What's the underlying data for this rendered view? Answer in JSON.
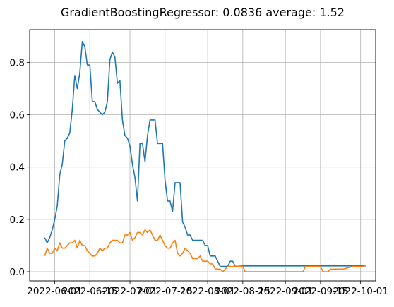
{
  "chart_data": {
    "type": "line",
    "title": "GradientBoostingRegressor: 0.0836 average: 1.52",
    "xlabel": "",
    "ylabel": "",
    "grid": true,
    "ylim": [
      -0.035,
      0.925
    ],
    "xlim": [
      "2022-05-22",
      "2022-10-07"
    ],
    "x_tick_labels": [
      "2022-06-01",
      "2022-06-15",
      "2022-07-01",
      "2022-07-15",
      "2022-08-01",
      "2022-08-15",
      "2022-09-01",
      "2022-09-15",
      "2022-10-01"
    ],
    "y_tick_labels": [
      "0.0",
      "0.2",
      "0.4",
      "0.6",
      "0.8"
    ],
    "y_ticks": [
      0.0,
      0.2,
      0.4,
      0.6,
      0.8
    ],
    "series": [
      {
        "color": "#1f77b4",
        "points": [
          [
            "2022-05-28",
            0.13
          ],
          [
            "2022-05-29",
            0.11
          ],
          [
            "2022-05-30",
            0.13
          ],
          [
            "2022-05-31",
            0.16
          ],
          [
            "2022-06-01",
            0.2
          ],
          [
            "2022-06-02",
            0.25
          ],
          [
            "2022-06-03",
            0.37
          ],
          [
            "2022-06-04",
            0.41
          ],
          [
            "2022-06-05",
            0.5
          ],
          [
            "2022-06-06",
            0.51
          ],
          [
            "2022-06-07",
            0.53
          ],
          [
            "2022-06-08",
            0.62
          ],
          [
            "2022-06-09",
            0.75
          ],
          [
            "2022-06-10",
            0.7
          ],
          [
            "2022-06-11",
            0.76
          ],
          [
            "2022-06-12",
            0.88
          ],
          [
            "2022-06-13",
            0.86
          ],
          [
            "2022-06-14",
            0.79
          ],
          [
            "2022-06-15",
            0.79
          ],
          [
            "2022-06-16",
            0.65
          ],
          [
            "2022-06-17",
            0.65
          ],
          [
            "2022-06-18",
            0.62
          ],
          [
            "2022-06-19",
            0.61
          ],
          [
            "2022-06-20",
            0.6
          ],
          [
            "2022-06-21",
            0.61
          ],
          [
            "2022-06-22",
            0.65
          ],
          [
            "2022-06-23",
            0.81
          ],
          [
            "2022-06-24",
            0.84
          ],
          [
            "2022-06-25",
            0.82
          ],
          [
            "2022-06-26",
            0.72
          ],
          [
            "2022-06-27",
            0.73
          ],
          [
            "2022-06-28",
            0.58
          ],
          [
            "2022-06-29",
            0.52
          ],
          [
            "2022-06-30",
            0.51
          ],
          [
            "2022-07-01",
            0.48
          ],
          [
            "2022-07-02",
            0.41
          ],
          [
            "2022-07-03",
            0.36
          ],
          [
            "2022-07-04",
            0.27
          ],
          [
            "2022-07-05",
            0.49
          ],
          [
            "2022-07-06",
            0.49
          ],
          [
            "2022-07-07",
            0.42
          ],
          [
            "2022-07-08",
            0.52
          ],
          [
            "2022-07-09",
            0.58
          ],
          [
            "2022-07-10",
            0.58
          ],
          [
            "2022-07-11",
            0.58
          ],
          [
            "2022-07-12",
            0.49
          ],
          [
            "2022-07-13",
            0.49
          ],
          [
            "2022-07-14",
            0.49
          ],
          [
            "2022-07-15",
            0.35
          ],
          [
            "2022-07-16",
            0.27
          ],
          [
            "2022-07-17",
            0.27
          ],
          [
            "2022-07-18",
            0.23
          ],
          [
            "2022-07-19",
            0.34
          ],
          [
            "2022-07-20",
            0.34
          ],
          [
            "2022-07-21",
            0.34
          ],
          [
            "2022-07-22",
            0.19
          ],
          [
            "2022-07-23",
            0.17
          ],
          [
            "2022-07-24",
            0.14
          ],
          [
            "2022-07-25",
            0.14
          ],
          [
            "2022-07-26",
            0.12
          ],
          [
            "2022-07-27",
            0.12
          ],
          [
            "2022-07-28",
            0.12
          ],
          [
            "2022-07-29",
            0.12
          ],
          [
            "2022-07-30",
            0.12
          ],
          [
            "2022-07-31",
            0.1
          ],
          [
            "2022-08-01",
            0.1
          ],
          [
            "2022-08-02",
            0.06
          ],
          [
            "2022-08-03",
            0.06
          ],
          [
            "2022-08-04",
            0.06
          ],
          [
            "2022-08-05",
            0.04
          ],
          [
            "2022-08-06",
            0.02
          ],
          [
            "2022-08-07",
            0.02
          ],
          [
            "2022-08-08",
            0.02
          ],
          [
            "2022-08-09",
            0.02
          ],
          [
            "2022-08-10",
            0.04
          ],
          [
            "2022-08-11",
            0.04
          ],
          [
            "2022-08-12",
            0.02
          ],
          [
            "2022-08-15",
            0.022
          ],
          [
            "2022-09-01",
            0.022
          ],
          [
            "2022-09-15",
            0.022
          ],
          [
            "2022-10-01",
            0.022
          ],
          [
            "2022-10-03",
            0.022
          ]
        ]
      },
      {
        "color": "#ff7f0e",
        "points": [
          [
            "2022-05-28",
            0.06
          ],
          [
            "2022-05-29",
            0.09
          ],
          [
            "2022-05-30",
            0.07
          ],
          [
            "2022-05-31",
            0.07
          ],
          [
            "2022-06-01",
            0.09
          ],
          [
            "2022-06-02",
            0.08
          ],
          [
            "2022-06-03",
            0.11
          ],
          [
            "2022-06-04",
            0.09
          ],
          [
            "2022-06-05",
            0.09
          ],
          [
            "2022-06-06",
            0.1
          ],
          [
            "2022-06-07",
            0.11
          ],
          [
            "2022-06-08",
            0.11
          ],
          [
            "2022-06-09",
            0.12
          ],
          [
            "2022-06-10",
            0.09
          ],
          [
            "2022-06-11",
            0.12
          ],
          [
            "2022-06-12",
            0.1
          ],
          [
            "2022-06-13",
            0.1
          ],
          [
            "2022-06-14",
            0.08
          ],
          [
            "2022-06-15",
            0.07
          ],
          [
            "2022-06-16",
            0.06
          ],
          [
            "2022-06-17",
            0.06
          ],
          [
            "2022-06-18",
            0.07
          ],
          [
            "2022-06-19",
            0.09
          ],
          [
            "2022-06-20",
            0.08
          ],
          [
            "2022-06-21",
            0.09
          ],
          [
            "2022-06-22",
            0.09
          ],
          [
            "2022-06-23",
            0.11
          ],
          [
            "2022-06-24",
            0.12
          ],
          [
            "2022-06-25",
            0.12
          ],
          [
            "2022-06-26",
            0.12
          ],
          [
            "2022-06-27",
            0.11
          ],
          [
            "2022-06-28",
            0.11
          ],
          [
            "2022-06-29",
            0.14
          ],
          [
            "2022-06-30",
            0.14
          ],
          [
            "2022-07-01",
            0.15
          ],
          [
            "2022-07-02",
            0.12
          ],
          [
            "2022-07-03",
            0.13
          ],
          [
            "2022-07-04",
            0.15
          ],
          [
            "2022-07-05",
            0.15
          ],
          [
            "2022-07-06",
            0.14
          ],
          [
            "2022-07-07",
            0.16
          ],
          [
            "2022-07-08",
            0.15
          ],
          [
            "2022-07-09",
            0.16
          ],
          [
            "2022-07-10",
            0.14
          ],
          [
            "2022-07-11",
            0.12
          ],
          [
            "2022-07-12",
            0.12
          ],
          [
            "2022-07-13",
            0.14
          ],
          [
            "2022-07-14",
            0.12
          ],
          [
            "2022-07-15",
            0.1
          ],
          [
            "2022-07-16",
            0.09
          ],
          [
            "2022-07-17",
            0.09
          ],
          [
            "2022-07-18",
            0.11
          ],
          [
            "2022-07-19",
            0.12
          ],
          [
            "2022-07-20",
            0.07
          ],
          [
            "2022-07-21",
            0.06
          ],
          [
            "2022-07-22",
            0.07
          ],
          [
            "2022-07-23",
            0.09
          ],
          [
            "2022-07-24",
            0.08
          ],
          [
            "2022-07-25",
            0.07
          ],
          [
            "2022-07-26",
            0.05
          ],
          [
            "2022-07-27",
            0.05
          ],
          [
            "2022-07-28",
            0.05
          ],
          [
            "2022-07-29",
            0.06
          ],
          [
            "2022-07-30",
            0.04
          ],
          [
            "2022-07-31",
            0.04
          ],
          [
            "2022-08-01",
            0.04
          ],
          [
            "2022-08-02",
            0.03
          ],
          [
            "2022-08-03",
            0.03
          ],
          [
            "2022-08-04",
            0.01
          ],
          [
            "2022-08-05",
            0.01
          ],
          [
            "2022-08-06",
            0.01
          ],
          [
            "2022-08-07",
            0.0
          ],
          [
            "2022-08-08",
            0.01
          ],
          [
            "2022-08-09",
            0.02
          ],
          [
            "2022-08-10",
            0.02
          ],
          [
            "2022-08-11",
            0.02
          ],
          [
            "2022-08-12",
            0.02
          ],
          [
            "2022-08-15",
            0.02
          ],
          [
            "2022-08-16",
            0.0
          ],
          [
            "2022-08-25",
            0.0
          ],
          [
            "2022-09-05",
            0.0
          ],
          [
            "2022-09-08",
            0.0
          ],
          [
            "2022-09-09",
            0.02
          ],
          [
            "2022-09-15",
            0.02
          ],
          [
            "2022-09-16",
            0.0
          ],
          [
            "2022-09-18",
            0.0
          ],
          [
            "2022-09-19",
            0.01
          ],
          [
            "2022-09-24",
            0.01
          ],
          [
            "2022-09-28",
            0.02
          ],
          [
            "2022-10-01",
            0.02
          ],
          [
            "2022-10-02",
            0.02
          ],
          [
            "2022-10-03",
            0.025
          ]
        ]
      }
    ]
  }
}
